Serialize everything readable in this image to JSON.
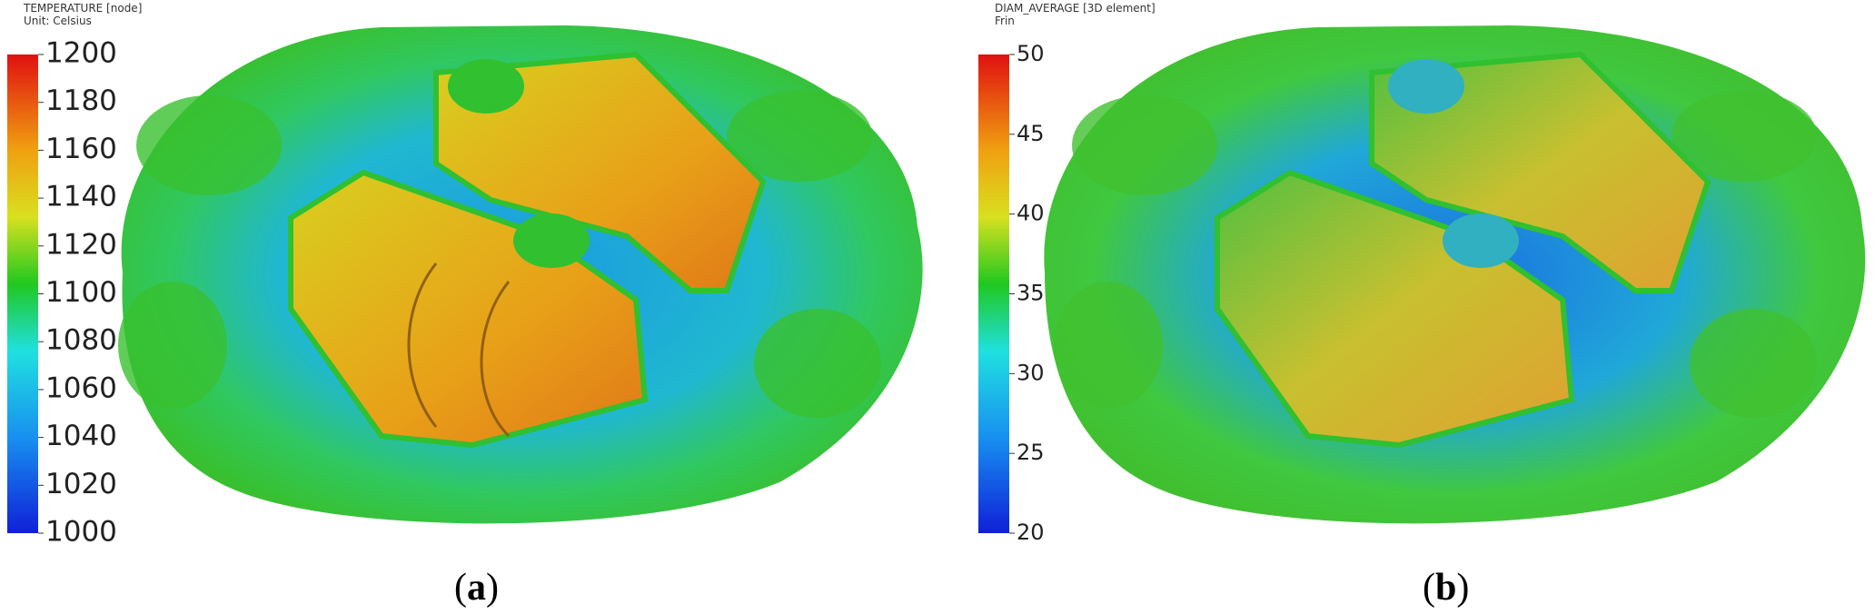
{
  "panels": [
    {
      "title": "TEMPERATURE [node]",
      "unit": "Unit: Celsius",
      "colorbar": {
        "min": 1000,
        "max": 1200,
        "ticks": [
          1000,
          1020,
          1040,
          1060,
          1080,
          1100,
          1120,
          1140,
          1160,
          1180,
          1200
        ]
      },
      "caption": [
        "(",
        "a",
        ")"
      ]
    },
    {
      "title": "DIAM_AVERAGE [3D element]",
      "unit": "Frin",
      "colorbar": {
        "min": 20,
        "max": 50,
        "ticks": [
          20,
          25,
          30,
          35,
          40,
          45,
          50
        ]
      },
      "caption": [
        "(",
        "b",
        ")"
      ]
    }
  ]
}
